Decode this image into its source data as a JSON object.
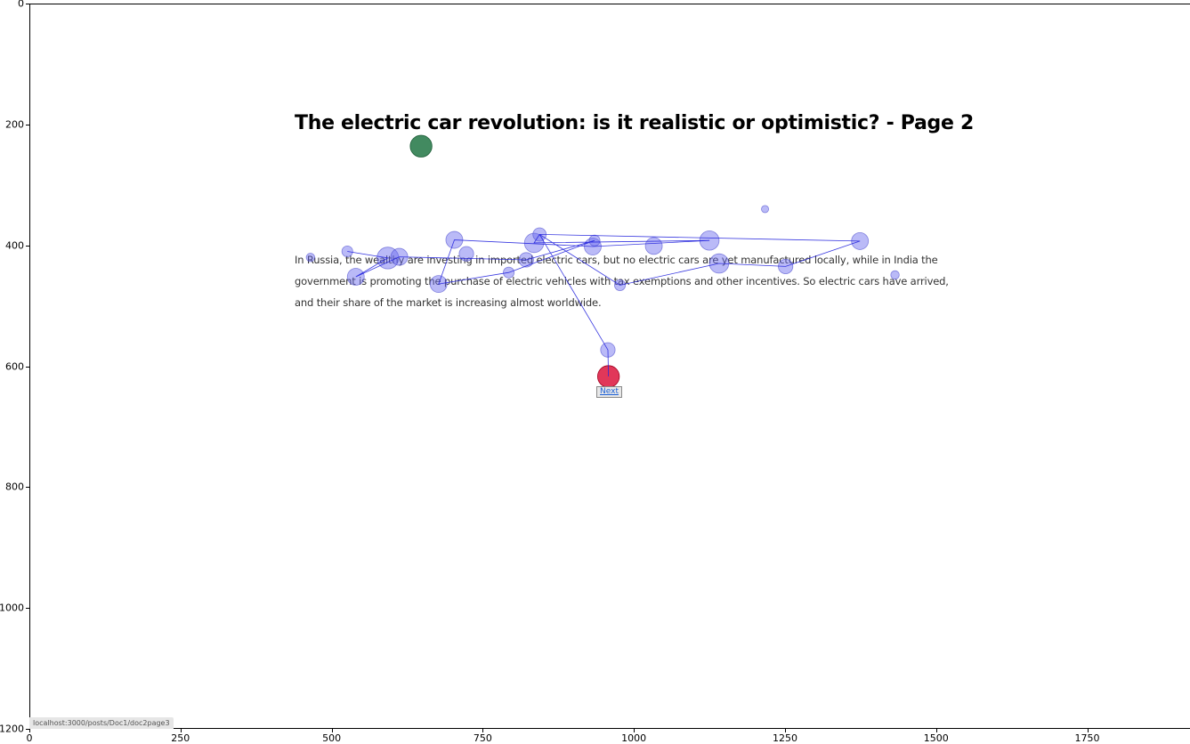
{
  "page": {
    "title": "The electric car revolution: is it realistic or optimistic? - Page 2",
    "paragraph_lines": [
      "In Russia, the wealthy are investing in imported electric cars, but no electric cars are yet manufactured locally, while in India the",
      "government is promoting the purchase of electric vehicles with tax exemptions and other incentives. So electric cars have arrived,",
      "and their share of the market is increasing almost worldwide."
    ],
    "next_label": "Next",
    "status_url": "localhost:3000/posts/Doc1/doc2page3"
  },
  "axes": {
    "x_ticks": [
      "0",
      "250",
      "500",
      "750",
      "1000",
      "1250",
      "1500",
      "1750"
    ],
    "y_ticks": [
      "0",
      "200",
      "400",
      "600",
      "800",
      "1000",
      "1200"
    ]
  },
  "chart_data": {
    "type": "scatter",
    "title": "",
    "xlabel": "",
    "ylabel": "",
    "xlim": [
      0,
      1920
    ],
    "ylim": [
      1200,
      0
    ],
    "colors": {
      "fixation": "#6666ee",
      "start": "#2e7d4f",
      "end": "#dc143c",
      "path": "#2222dd"
    },
    "start_point": {
      "x": 648,
      "y": 236,
      "r": 18
    },
    "end_point": {
      "x": 958,
      "y": 617,
      "r": 18
    },
    "fixations": [
      {
        "x": 465,
        "y": 420,
        "r": 7
      },
      {
        "x": 526,
        "y": 410,
        "r": 9
      },
      {
        "x": 540,
        "y": 452,
        "r": 14
      },
      {
        "x": 593,
        "y": 421,
        "r": 18
      },
      {
        "x": 612,
        "y": 419,
        "r": 14
      },
      {
        "x": 703,
        "y": 391,
        "r": 14
      },
      {
        "x": 677,
        "y": 464,
        "r": 14
      },
      {
        "x": 723,
        "y": 414,
        "r": 12
      },
      {
        "x": 793,
        "y": 445,
        "r": 9
      },
      {
        "x": 822,
        "y": 424,
        "r": 12
      },
      {
        "x": 835,
        "y": 396,
        "r": 16
      },
      {
        "x": 844,
        "y": 382,
        "r": 11
      },
      {
        "x": 932,
        "y": 402,
        "r": 14
      },
      {
        "x": 935,
        "y": 392,
        "r": 9
      },
      {
        "x": 977,
        "y": 466,
        "r": 9
      },
      {
        "x": 1033,
        "y": 401,
        "r": 14
      },
      {
        "x": 1125,
        "y": 392,
        "r": 16
      },
      {
        "x": 1141,
        "y": 430,
        "r": 16
      },
      {
        "x": 1217,
        "y": 340,
        "r": 6
      },
      {
        "x": 1251,
        "y": 435,
        "r": 12
      },
      {
        "x": 1374,
        "y": 393,
        "r": 14
      },
      {
        "x": 1432,
        "y": 449,
        "r": 7
      },
      {
        "x": 957,
        "y": 573,
        "r": 12
      }
    ],
    "scanpath": [
      {
        "x": 526,
        "y": 410
      },
      {
        "x": 593,
        "y": 421
      },
      {
        "x": 540,
        "y": 452
      },
      {
        "x": 612,
        "y": 419
      },
      {
        "x": 822,
        "y": 424
      },
      {
        "x": 935,
        "y": 392
      },
      {
        "x": 793,
        "y": 445
      },
      {
        "x": 677,
        "y": 464
      },
      {
        "x": 703,
        "y": 391
      },
      {
        "x": 932,
        "y": 402
      },
      {
        "x": 1125,
        "y": 392
      },
      {
        "x": 835,
        "y": 396
      },
      {
        "x": 844,
        "y": 382
      },
      {
        "x": 977,
        "y": 466
      },
      {
        "x": 1141,
        "y": 430
      },
      {
        "x": 1251,
        "y": 435
      },
      {
        "x": 1374,
        "y": 393
      },
      {
        "x": 844,
        "y": 382
      },
      {
        "x": 957,
        "y": 573
      },
      {
        "x": 958,
        "y": 617
      }
    ]
  }
}
